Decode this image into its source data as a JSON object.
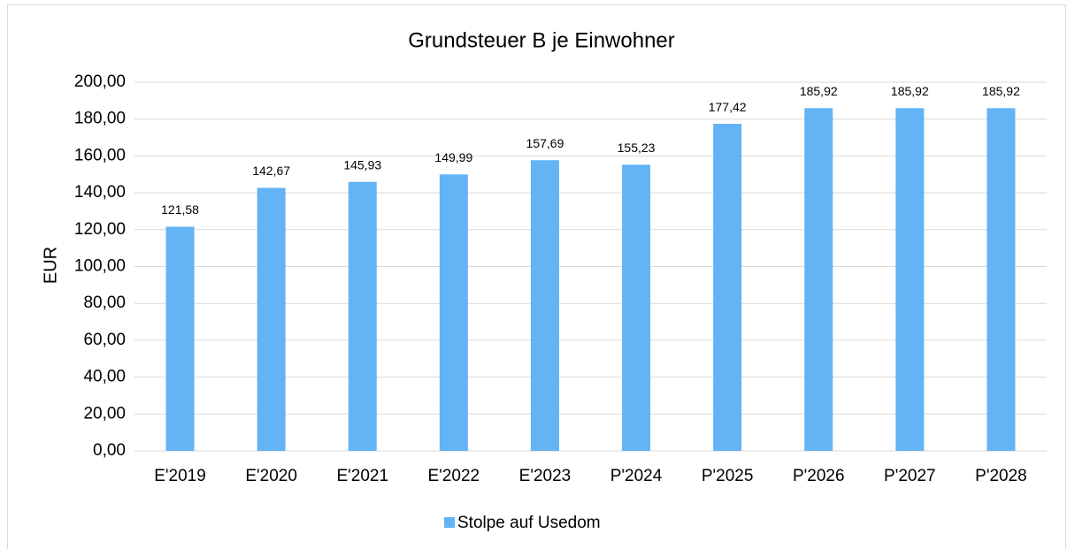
{
  "chart_data": {
    "type": "bar",
    "title": "Grundsteuer B je Einwohner",
    "y_label": "EUR",
    "categories": [
      "E'2019",
      "E'2020",
      "E'2021",
      "E'2022",
      "E'2023",
      "P'2024",
      "P'2025",
      "P'2026",
      "P'2027",
      "P'2028"
    ],
    "series": [
      {
        "name": "Stolpe auf Usedom",
        "color": "#63b3f5",
        "values": [
          121.58,
          142.67,
          145.93,
          149.99,
          157.69,
          155.23,
          177.42,
          185.92,
          185.92,
          185.92
        ],
        "value_labels": [
          "121,58",
          "142,67",
          "145,93",
          "149,99",
          "157,69",
          "155,23",
          "177,42",
          "185,92",
          "185,92",
          "185,92"
        ]
      }
    ],
    "ylim": [
      0,
      200
    ],
    "yticks": [
      {
        "value": 0,
        "label": "0,00"
      },
      {
        "value": 20,
        "label": "20,00"
      },
      {
        "value": 40,
        "label": "40,00"
      },
      {
        "value": 60,
        "label": "60,00"
      },
      {
        "value": 80,
        "label": "80,00"
      },
      {
        "value": 100,
        "label": "100,00"
      },
      {
        "value": 120,
        "label": "120,00"
      },
      {
        "value": 140,
        "label": "140,00"
      },
      {
        "value": 160,
        "label": "160,00"
      },
      {
        "value": 180,
        "label": "180,00"
      },
      {
        "value": 200,
        "label": "200,00"
      }
    ],
    "grid": true,
    "legend": "bottom"
  }
}
